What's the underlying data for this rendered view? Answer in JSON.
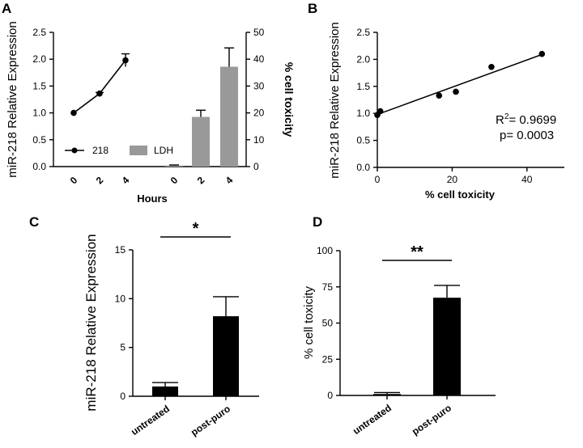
{
  "panels": {
    "a": "A",
    "b": "B",
    "c": "C",
    "d": "D"
  },
  "colors": {
    "black": "#000000",
    "gray": "#999999"
  },
  "chart_data": [
    {
      "id": "A",
      "type": "bar",
      "xlabel": "Hours",
      "ylabel": "miR-218 Relative Expression",
      "y2label": "% cell toxicity",
      "ylim": [
        0,
        2.5
      ],
      "y2lim": [
        0,
        50
      ],
      "yticks": [
        "0.0",
        "0.5",
        "1.0",
        "1.5",
        "2.0",
        "2.5"
      ],
      "y2ticks": [
        "0",
        "10",
        "20",
        "30",
        "40",
        "50"
      ],
      "legend": {
        "line": "218",
        "bar": "LDH",
        "position": "bottom-left"
      },
      "line_series": {
        "name": "218",
        "x": [
          "0",
          "2",
          "4"
        ],
        "values": [
          1.0,
          1.36,
          1.98
        ],
        "errors": [
          0.0,
          0.02,
          0.12
        ]
      },
      "bar_series": {
        "name": "LDH",
        "x": [
          "0",
          "2",
          "4"
        ],
        "values": [
          0.4,
          18.5,
          37.2
        ],
        "errors": [
          0.2,
          2.5,
          7.0
        ]
      }
    },
    {
      "id": "B",
      "type": "scatter",
      "xlabel": "% cell toxicity",
      "ylabel": "miR-218 Relative Expression",
      "xlim": [
        0,
        50
      ],
      "ylim": [
        0,
        2.5
      ],
      "xticks": [
        "0",
        "20",
        "40"
      ],
      "yticks": [
        "0.0",
        "0.5",
        "1.0",
        "1.5",
        "2.0",
        "2.5"
      ],
      "points": [
        {
          "x": 0.0,
          "y": 0.97
        },
        {
          "x": 0.8,
          "y": 1.04
        },
        {
          "x": 16.5,
          "y": 1.33
        },
        {
          "x": 21.0,
          "y": 1.4
        },
        {
          "x": 30.5,
          "y": 1.86
        },
        {
          "x": 44.0,
          "y": 2.1
        }
      ],
      "fit": {
        "x": [
          0,
          44
        ],
        "y": [
          0.98,
          2.09
        ]
      },
      "r2_prefix": "R",
      "r2_sup": "2",
      "r2_value": "= 0.9699",
      "p_text": "p= 0.0003"
    },
    {
      "id": "C",
      "type": "bar",
      "ylabel": "miR-218 Relative Expression",
      "ylim": [
        0,
        15
      ],
      "yticks": [
        "0",
        "5",
        "10",
        "15"
      ],
      "categories": [
        "untreated",
        "post-puro"
      ],
      "values": [
        1.0,
        8.2
      ],
      "errors": [
        0.4,
        2.0
      ],
      "significance": "*"
    },
    {
      "id": "D",
      "type": "bar",
      "ylabel": "% cell toxicity",
      "ylim": [
        0,
        100
      ],
      "yticks": [
        "0",
        "25",
        "50",
        "75",
        "100"
      ],
      "categories": [
        "untreated",
        "post-puro"
      ],
      "values": [
        1.0,
        67.5
      ],
      "errors": [
        1.0,
        8.5
      ],
      "significance": "**"
    }
  ]
}
